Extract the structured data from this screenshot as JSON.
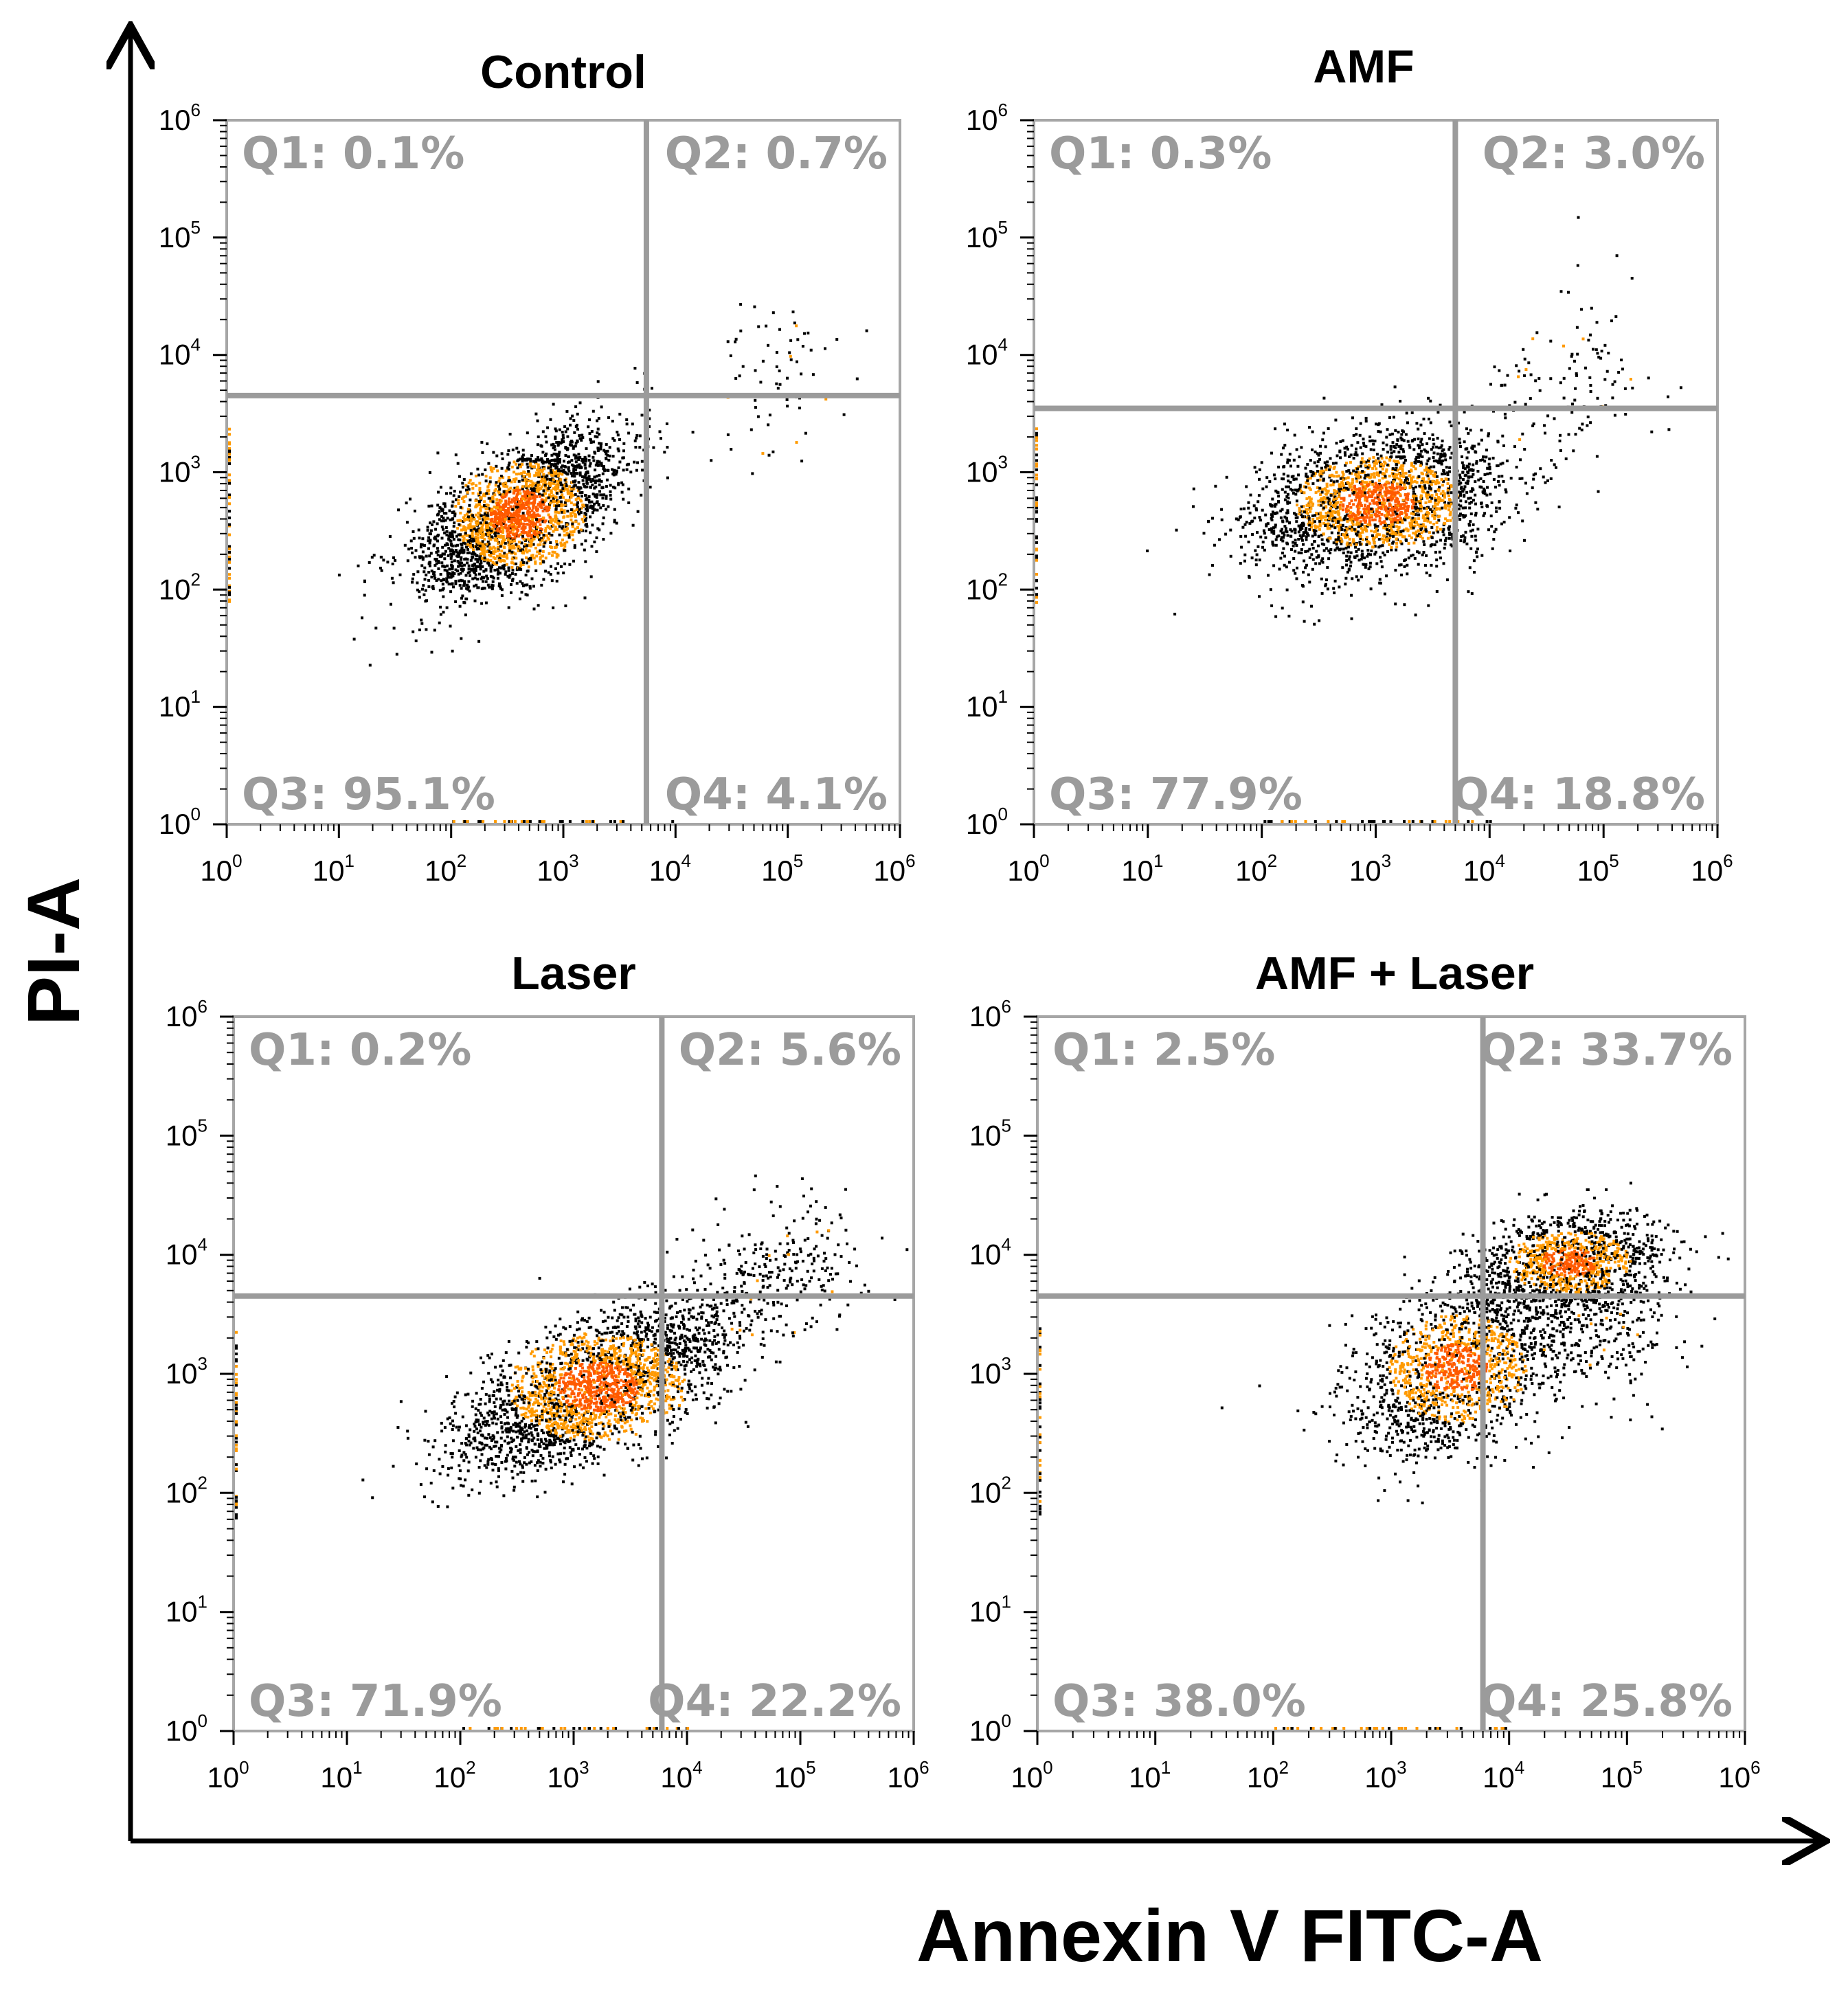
{
  "chart_data": {
    "type": "scatter",
    "xlabel": "Annexin V FITC-A",
    "ylabel": "PI-A",
    "xscale": "log",
    "yscale": "log",
    "xlim": [
      1,
      1000000
    ],
    "ylim": [
      1,
      1000000
    ],
    "tick_base": "10",
    "tick_exponents": [
      "0",
      "1",
      "2",
      "3",
      "4",
      "5",
      "6"
    ],
    "colors": {
      "quadrant_line": "#9b9b9b",
      "frame": "#a6a6a6",
      "dot_low": "#000000",
      "dot_mid": "#ff9a00",
      "dot_high": "#ff5a00"
    },
    "panels": [
      {
        "title": "Control",
        "gate_x": 5500,
        "gate_y": 4500,
        "quadrants": [
          {
            "id": "Q1",
            "label": "Q1: 0.1%",
            "value": 0.1
          },
          {
            "id": "Q2",
            "label": "Q2: 0.7%",
            "value": 0.7
          },
          {
            "id": "Q3",
            "label": "Q3: 95.1%",
            "value": 95.1
          },
          {
            "id": "Q4",
            "label": "Q4: 4.1%",
            "value": 4.1
          }
        ],
        "clusters": [
          {
            "cx": 2.6,
            "cy": 2.65,
            "sx": 0.45,
            "sy": 0.35,
            "rho": 0.6,
            "n": 2600,
            "dense": true
          },
          {
            "cx": 4.9,
            "cy": 3.9,
            "sx": 0.35,
            "sy": 0.35,
            "rho": 0.2,
            "n": 70,
            "dense": false
          }
        ]
      },
      {
        "title": "AMF",
        "gate_x": 5000,
        "gate_y": 3500,
        "quadrants": [
          {
            "id": "Q1",
            "label": "Q1: 0.3%",
            "value": 0.3
          },
          {
            "id": "Q2",
            "label": "Q2: 3.0%",
            "value": 3.0
          },
          {
            "id": "Q3",
            "label": "Q3: 77.9%",
            "value": 77.9
          },
          {
            "id": "Q4",
            "label": "Q4: 18.8%",
            "value": 18.8
          }
        ],
        "clusters": [
          {
            "cx": 3.0,
            "cy": 2.75,
            "sx": 0.55,
            "sy": 0.3,
            "rho": 0.3,
            "n": 2400,
            "dense": true
          },
          {
            "cx": 4.7,
            "cy": 3.8,
            "sx": 0.4,
            "sy": 0.35,
            "rho": 0.2,
            "n": 120,
            "dense": false
          }
        ]
      },
      {
        "title": "Laser",
        "gate_x": 6000,
        "gate_y": 4500,
        "quadrants": [
          {
            "id": "Q1",
            "label": "Q1: 0.2%",
            "value": 0.2
          },
          {
            "id": "Q2",
            "label": "Q2: 5.6%",
            "value": 5.6
          },
          {
            "id": "Q3",
            "label": "Q3: 71.9%",
            "value": 71.9
          },
          {
            "id": "Q4",
            "label": "Q4: 22.2%",
            "value": 22.2
          }
        ],
        "clusters": [
          {
            "cx": 3.2,
            "cy": 2.9,
            "sx": 0.6,
            "sy": 0.35,
            "rho": 0.65,
            "n": 2700,
            "dense": true
          },
          {
            "cx": 4.8,
            "cy": 3.9,
            "sx": 0.45,
            "sy": 0.3,
            "rho": 0.2,
            "n": 260,
            "dense": false
          }
        ]
      },
      {
        "title": "AMF + Laser",
        "gate_x": 6000,
        "gate_y": 4500,
        "quadrants": [
          {
            "id": "Q1",
            "label": "Q1: 2.5%",
            "value": 2.5
          },
          {
            "id": "Q2",
            "label": "Q2: 33.7%",
            "value": 33.7
          },
          {
            "id": "Q3",
            "label": "Q3: 38.0%",
            "value": 38.0
          },
          {
            "id": "Q4",
            "label": "Q4: 25.8%",
            "value": 25.8
          }
        ],
        "clusters": [
          {
            "cx": 3.55,
            "cy": 3.05,
            "sx": 0.45,
            "sy": 0.35,
            "rho": 0.35,
            "n": 1700,
            "dense": true
          },
          {
            "cx": 4.5,
            "cy": 3.95,
            "sx": 0.4,
            "sy": 0.2,
            "rho": 0.2,
            "n": 1300,
            "dense": true
          },
          {
            "cx": 4.8,
            "cy": 3.4,
            "sx": 0.35,
            "sy": 0.3,
            "rho": 0.1,
            "n": 250,
            "dense": false
          }
        ]
      }
    ]
  }
}
